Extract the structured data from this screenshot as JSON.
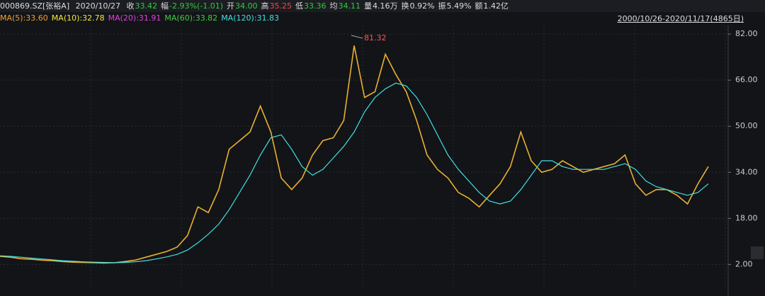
{
  "header": {
    "symbol": "000869.SZ[张裕A]",
    "date": "2020/10/27",
    "quote": [
      {
        "label": "收",
        "value": "33.42",
        "color": "#2ecc40"
      },
      {
        "label": "幅",
        "value": "-2.93%(-1.01)",
        "color": "#2ecc40"
      },
      {
        "label": "开",
        "value": "34.00",
        "color": "#2ecc40"
      },
      {
        "label": "高",
        "value": "35.25",
        "color": "#ff4040"
      },
      {
        "label": "低",
        "value": "33.36",
        "color": "#2ecc40"
      },
      {
        "label": "均",
        "value": "34.11",
        "color": "#2ecc40"
      },
      {
        "label": "量",
        "value": "4.16万",
        "color": "#dddddd"
      },
      {
        "label": "换",
        "value": "0.92%",
        "color": "#dddddd"
      },
      {
        "label": "振",
        "value": "5.49%",
        "color": "#dddddd"
      },
      {
        "label": "额",
        "value": "1.42亿",
        "color": "#dddddd"
      }
    ],
    "indicators": [
      {
        "text": "MA(5):33.60",
        "color": "#f0a030"
      },
      {
        "text": "MA(10):32.78",
        "color": "#f5e642"
      },
      {
        "text": "MA(20):31.91",
        "color": "#e040e0"
      },
      {
        "text": "MA(60):33.82",
        "color": "#40d040"
      },
      {
        "text": "MA(120):31.83",
        "color": "#40e0e0"
      }
    ],
    "range": "2000/10/26-2020/11/17(4865日)"
  },
  "chart_data": {
    "type": "line",
    "max_label": "81.32",
    "ylim": [
      -7,
      84
    ],
    "yticks": [
      {
        "value": 2,
        "label": "2.00"
      },
      {
        "value": 18,
        "label": "18.00"
      },
      {
        "value": 34,
        "label": "34.00"
      },
      {
        "value": 50,
        "label": "50.00"
      },
      {
        "value": 66,
        "label": "66.00"
      },
      {
        "value": 82,
        "label": "82.00"
      }
    ],
    "grid": true,
    "series": [
      {
        "color": "#e8b030",
        "values": [
          4.8,
          4.5,
          4.0,
          3.8,
          3.5,
          3.3,
          3.0,
          2.8,
          2.7,
          2.6,
          2.5,
          2.6,
          3.0,
          3.5,
          4.5,
          5.5,
          6.5,
          8,
          12,
          22,
          20,
          28,
          42,
          45,
          48,
          57,
          48,
          32,
          28,
          32,
          40,
          45,
          46,
          52,
          78,
          60,
          62,
          75,
          68,
          62,
          52,
          40,
          35,
          32,
          27,
          25,
          22,
          26,
          30,
          36,
          48,
          38,
          34,
          35,
          38,
          36,
          34,
          35,
          36,
          37,
          40,
          30,
          26,
          28,
          28,
          26,
          23,
          30,
          36
        ]
      },
      {
        "color": "#40e0e0",
        "values": [
          5,
          4.8,
          4.5,
          4.2,
          3.9,
          3.6,
          3.3,
          3.1,
          2.9,
          2.8,
          2.7,
          2.6,
          2.7,
          2.9,
          3.3,
          3.9,
          4.6,
          5.5,
          7,
          9.5,
          12.5,
          16,
          21,
          27,
          33,
          40,
          46,
          47,
          42,
          36,
          33,
          35,
          39,
          43,
          48,
          55,
          60,
          63,
          65,
          64,
          60,
          54,
          47,
          40,
          35,
          31,
          27,
          24,
          23,
          24,
          28,
          33,
          38,
          38,
          36,
          35,
          35,
          35,
          35,
          36,
          37,
          35,
          31,
          29,
          28,
          27,
          26,
          27,
          30
        ]
      }
    ]
  }
}
